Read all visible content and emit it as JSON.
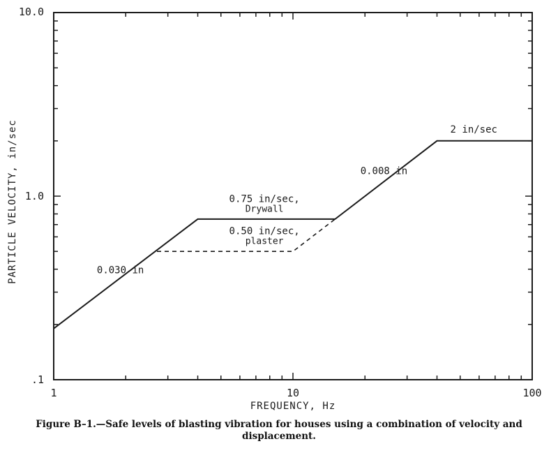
{
  "caption": {
    "line1": "Figure B–1.—Safe levels of blasting vibration for houses using a combination of velocity and",
    "line2": "displacement."
  },
  "chart_data": {
    "type": "line",
    "title": "",
    "xlabel": "FREQUENCY, Hz",
    "ylabel": "PARTICLE VELOCITY, in/sec",
    "xscale": "log",
    "yscale": "log",
    "xlim": [
      1,
      100
    ],
    "ylim": [
      0.1,
      10.0
    ],
    "x_tick_labels": [
      {
        "value": 1,
        "label": "1"
      },
      {
        "value": 10,
        "label": "10"
      },
      {
        "value": 100,
        "label": "100"
      }
    ],
    "y_tick_labels": [
      {
        "value": 0.1,
        "label": ".1"
      },
      {
        "value": 1.0,
        "label": "1.0"
      },
      {
        "value": 10.0,
        "label": "10.0"
      }
    ],
    "grid": false,
    "series": [
      {
        "style": "solid",
        "color": "#1a1a1a",
        "points": [
          [
            1,
            0.19
          ],
          [
            4,
            0.75
          ],
          [
            15,
            0.75
          ],
          [
            40,
            2.0
          ],
          [
            100,
            2.0
          ]
        ]
      },
      {
        "style": "dashed",
        "color": "#1a1a1a",
        "points": [
          [
            2.7,
            0.5
          ],
          [
            10,
            0.5
          ],
          [
            15,
            0.75
          ]
        ]
      }
    ],
    "annotations": [
      {
        "text": "0.030 in",
        "x": 1.9,
        "y": 0.38,
        "anchor": "middle"
      },
      {
        "text": "0.75 in/sec,",
        "x": 7.6,
        "y": 0.93,
        "anchor": "middle"
      },
      {
        "text": "Drywall",
        "x": 7.6,
        "y": 0.82,
        "anchor": "middle"
      },
      {
        "text": "0.50 in/sec,",
        "x": 7.6,
        "y": 0.62,
        "anchor": "middle"
      },
      {
        "text": "plaster",
        "x": 7.6,
        "y": 0.55,
        "anchor": "middle"
      },
      {
        "text": "0.008 in",
        "x": 24,
        "y": 1.32,
        "anchor": "middle"
      },
      {
        "text": "2 in/sec",
        "x": 57,
        "y": 2.22,
        "anchor": "middle"
      }
    ]
  }
}
